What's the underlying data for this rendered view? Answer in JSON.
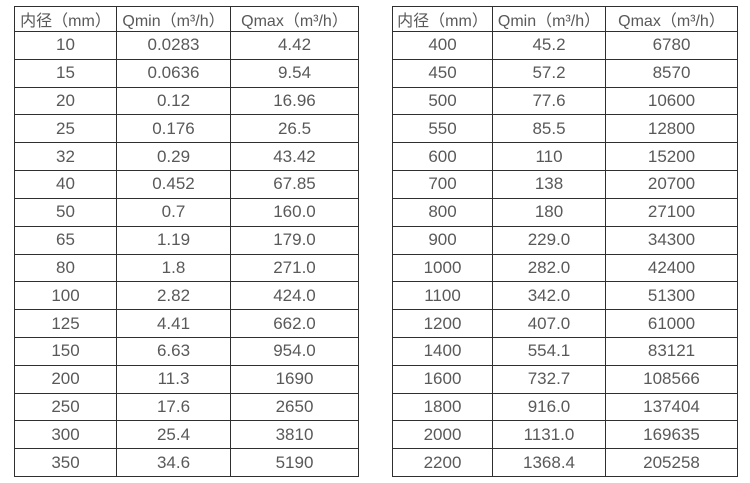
{
  "colors": {
    "background": "#ffffff",
    "border": "#2f2f2f",
    "text": "#595959"
  },
  "chart_data": [
    {
      "type": "table",
      "title": "",
      "columns": [
        "内径（mm）",
        "Qmin（m³/h）",
        "Qmax（m³/h）"
      ],
      "rows": [
        [
          "10",
          "0.0283",
          "4.42"
        ],
        [
          "15",
          "0.0636",
          "9.54"
        ],
        [
          "20",
          "0.12",
          "16.96"
        ],
        [
          "25",
          "0.176",
          "26.5"
        ],
        [
          "32",
          "0.29",
          "43.42"
        ],
        [
          "40",
          "0.452",
          "67.85"
        ],
        [
          "50",
          "0.7",
          "160.0"
        ],
        [
          "65",
          "1.19",
          "179.0"
        ],
        [
          "80",
          "1.8",
          "271.0"
        ],
        [
          "100",
          "2.82",
          "424.0"
        ],
        [
          "125",
          "4.41",
          "662.0"
        ],
        [
          "150",
          "6.63",
          "954.0"
        ],
        [
          "200",
          "11.3",
          "1690"
        ],
        [
          "250",
          "17.6",
          "2650"
        ],
        [
          "300",
          "25.4",
          "3810"
        ],
        [
          "350",
          "34.6",
          "5190"
        ]
      ]
    },
    {
      "type": "table",
      "title": "",
      "columns": [
        "内径（mm）",
        "Qmin（m³/h）",
        "Qmax（m³/h）"
      ],
      "rows": [
        [
          "400",
          "45.2",
          "6780"
        ],
        [
          "450",
          "57.2",
          "8570"
        ],
        [
          "500",
          "77.6",
          "10600"
        ],
        [
          "550",
          "85.5",
          "12800"
        ],
        [
          "600",
          "110",
          "15200"
        ],
        [
          "700",
          "138",
          "20700"
        ],
        [
          "800",
          "180",
          "27100"
        ],
        [
          "900",
          "229.0",
          "34300"
        ],
        [
          "1000",
          "282.0",
          "42400"
        ],
        [
          "1100",
          "342.0",
          "51300"
        ],
        [
          "1200",
          "407.0",
          "61000"
        ],
        [
          "1400",
          "554.1",
          "83121"
        ],
        [
          "1600",
          "732.7",
          "108566"
        ],
        [
          "1800",
          "916.0",
          "137404"
        ],
        [
          "2000",
          "1131.0",
          "169635"
        ],
        [
          "2200",
          "1368.4",
          "205258"
        ]
      ]
    }
  ]
}
